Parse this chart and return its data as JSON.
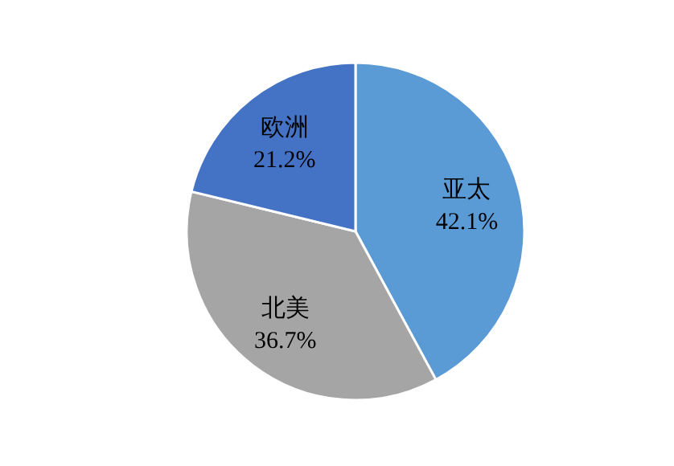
{
  "chart_data": {
    "type": "pie",
    "categories": [
      "亚太",
      "北美",
      "欧洲"
    ],
    "values": [
      42.1,
      36.7,
      21.2
    ],
    "colors": [
      "#5b9bd5",
      "#a5a5a5",
      "#4472c4"
    ],
    "value_labels": [
      "42.1%",
      "36.7%",
      "21.2%"
    ]
  }
}
